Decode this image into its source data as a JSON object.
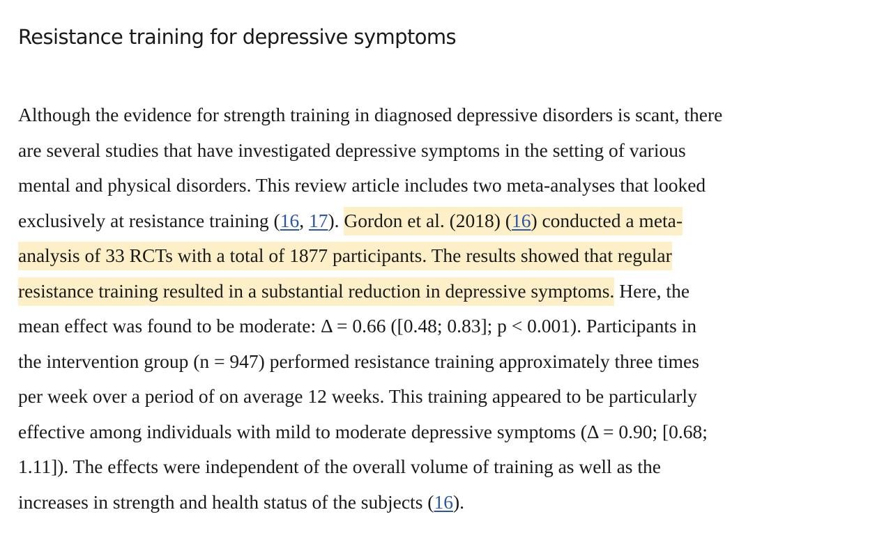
{
  "heading": "Resistance training for depressive symptoms",
  "paragraph": {
    "l1": "Although the evidence for strength training in diagnosed depressive disorders is scant, there",
    "l2": "are several studies that have investigated depressive symptoms in the setting of various",
    "l3": "mental and physical disorders. This review article includes two meta-analyses that looked",
    "l4_pre": "exclusively at resistance training (",
    "l4_ref1": "16",
    "l4_sep": ", ",
    "l4_ref2": "17",
    "l4_post": ").",
    "l4_hl_a": "Gordon et al. (2018) (",
    "l4_ref3": "16",
    "l4_hl_b": ") conducted a meta-",
    "l5_hl": "analysis of 33 RCTs with a total of 1877 participants. The results showed that regular",
    "l6_hl": "resistance training resulted in a substantial reduction in depressive symptoms.",
    "l6_post": " Here, the",
    "l7": "mean effect was found to be moderate: Δ = 0.66 ([0.48; 0.83]; p < 0.001). Participants in",
    "l8": "the intervention group (n = 947) performed resistance training approximately three times",
    "l9": "per week over a period of on average 12 weeks. This training appeared to be particularly",
    "l10": "effective among individuals with mild to moderate depressive symptoms (Δ = 0.90; [0.68;",
    "l11": "1.11]). The effects were independent of the overall volume of training as well as the",
    "l12_pre": "increases in strength and health status of the subjects (",
    "l12_ref": "16",
    "l12_post": ")."
  },
  "colors": {
    "highlight": "#fdf0c8",
    "link": "#2a56a8",
    "text": "#1a1a1a"
  }
}
